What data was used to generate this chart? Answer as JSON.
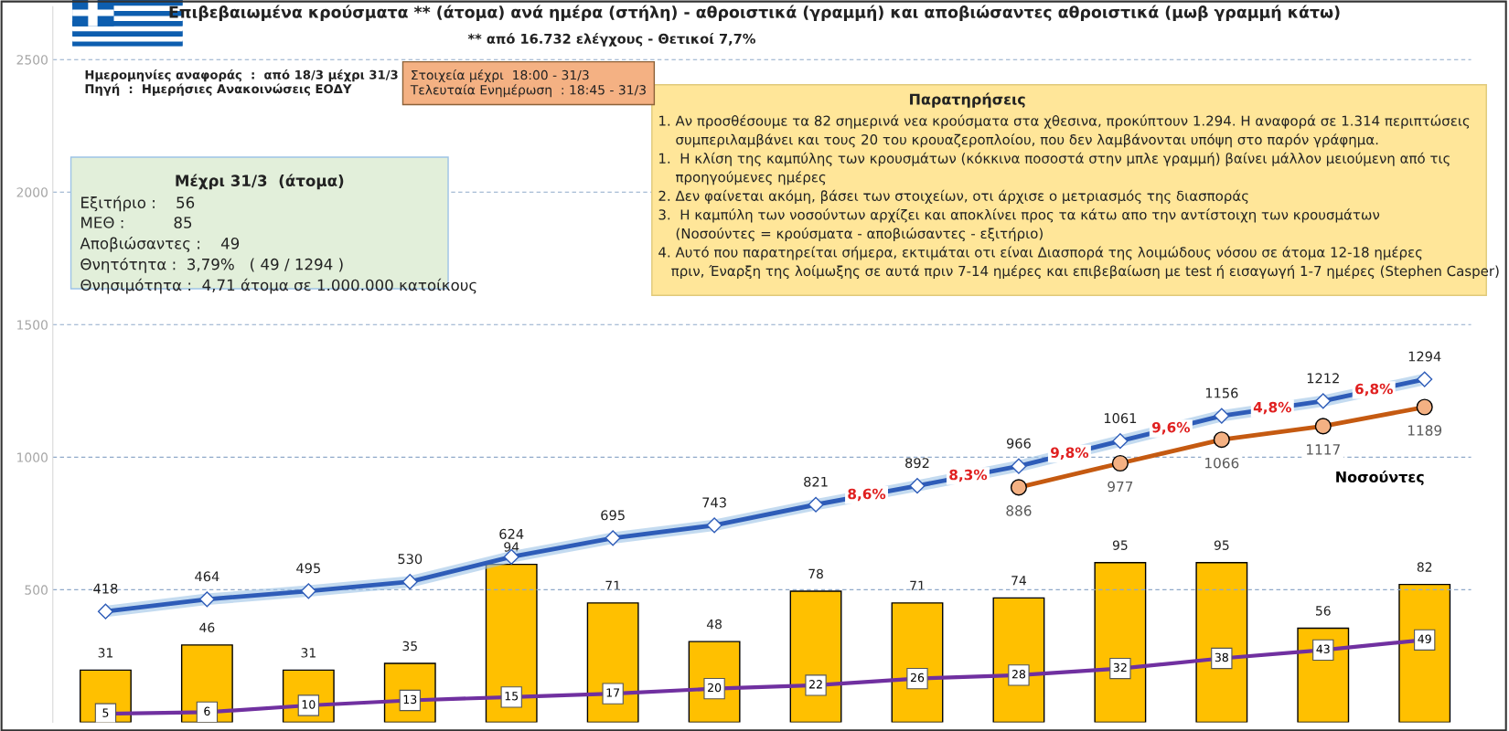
{
  "chart_data": {
    "type": "bar",
    "title": "Επιβεβαιωμένα κρούσματα ** (άτομα) ανά ημέρα (στήλη) - αθροιστικά (γραμμή) και αποβιώσαντες αθροιστικά (μωβ γραμμή κάτω)",
    "subtitle": "** από 16.732 ελέγχους - Θετικοί 7,7%",
    "categories": [
      null,
      null,
      null,
      null,
      null,
      null,
      null,
      null,
      null,
      null,
      null,
      null,
      null,
      null
    ],
    "series": [
      {
        "axis": "y2",
        "color": "#ffc000",
        "values": [
          31,
          46,
          31,
          35,
          94,
          71,
          48,
          78,
          71,
          74,
          95,
          95,
          56,
          82
        ]
      },
      {
        "type": "line",
        "color": "#2e5cb8",
        "marker": "diamond",
        "values": [
          418,
          464,
          495,
          530,
          624,
          695,
          743,
          821,
          892,
          966,
          1061,
          1156,
          1212,
          1294
        ]
      },
      {
        "type": "line",
        "name": "Νοσούντες",
        "color": "#c55a11",
        "marker": "circle",
        "values": [
          null,
          null,
          null,
          null,
          null,
          null,
          null,
          null,
          null,
          886,
          977,
          1066,
          1117,
          1189
        ]
      },
      {
        "type": "line",
        "axis": "y2",
        "color": "#7030a0",
        "marker": "square",
        "values": [
          5,
          6,
          10,
          13,
          15,
          17,
          20,
          22,
          26,
          28,
          32,
          38,
          43,
          49
        ]
      }
    ],
    "ylim": [
      0,
      2700
    ],
    "yticks": [
      500,
      1000,
      1500,
      2000,
      2500
    ],
    "y2lim": [
      0,
      426
    ],
    "tick_labels": "y",
    "grid": "y",
    "legend": false,
    "data_labels": true,
    "annotations": [
      "Ημερομηνίες αναφοράς  :  από 18/3 μέχρι 31/3\nΠηγή  :  Ημερήσιες Ανακοινώσεις ΕΟΔΥ",
      "Στοιχεία μέχρι  18:00 - 31/3\nΤελευταία Ενημέρωση  : 18:45 - 31/3",
      "Μέχρι 31/3  (άτομα)",
      "Εξιτήριο :    56\nΜΕΘ :          85\nΑποβιώσαντες :    49\nΘνητότητα :  3,79%   ( 49 / 1294 )\nΘνησιμότητα :  4,71 άτομα σε 1.000.000 κατοίκους",
      "Παρατηρήσεις",
      "1. Αν προσθέσουμε τα 82 σημερινά νεα κρούσματα στα χθεσινα, προκύπτουν 1.294. Η αναφορά σε 1.314 περιπτώσεις\n    συμπεριλαμβάνει και τους 20 του κρουαζεροπλοίου, που δεν λαμβάνονται υπόψη στο παρόν γράφημα.\n1.  Η κλίση της καμπύλης των κρουσμάτων (κόκκινα ποσοστά στην μπλε γραμμή) βαίνει μάλλον μειούμενη από τις\n    προηγούμενες ημέρες\n2. Δεν φαίνεται ακόμη, βάσει των στοιχείων, οτι άρχισε ο μετριασμός της διασποράς\n3.  Η καμπύλη των νοσούντων αρχίζει και αποκλίνει προς τα κάτω απο την αντίστοιχη των κρουσμάτων\n    (Νοσούντες = κρούσματα - αποβιώσαντες - εξιτήριο)\n4. Αυτό που παρατηρείται σήμερα, εκτιμάται οτι είναι Διασπορά της λοιμώδους νόσου σε άτομα 12-18 ημέρες\n   πριν, Έναρξη της λοίμωξης σε αυτά πριν 7-14 ημέρες και επιβεβαίωση με test ή εισαγωγή 1-7 ημέρες (Stephen Casper)",
      {
        "text": "8,6%",
        "y": 857
      },
      {
        "text": "8,3%",
        "y": 929
      },
      {
        "text": "9,8%",
        "y": 1013
      },
      {
        "text": "9,6%",
        "y": 1108
      },
      {
        "text": "4,8%",
        "y": 1184
      },
      {
        "text": "6,8%",
        "y": 1253
      }
    ]
  }
}
